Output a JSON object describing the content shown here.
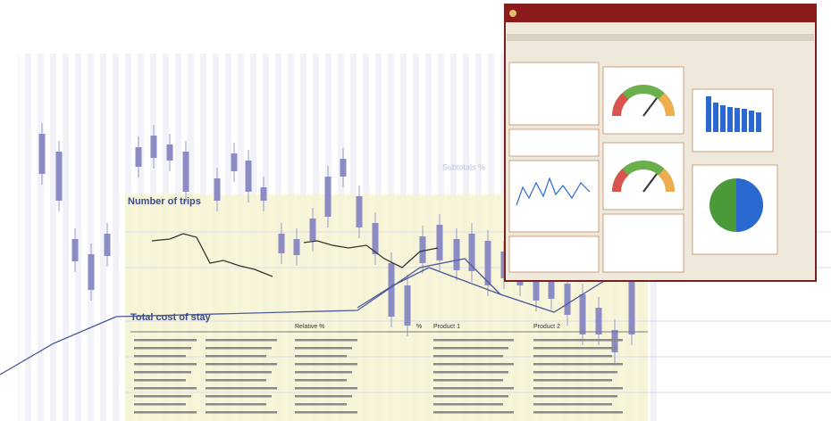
{
  "background": {
    "trips_title": "Number of trips",
    "cost_title": "Total cost of stay",
    "subtotals_label": "Subtotals %"
  },
  "table": {
    "headers": [
      "Relative %",
      "%",
      "Product 1",
      "Product 2"
    ]
  }
}
